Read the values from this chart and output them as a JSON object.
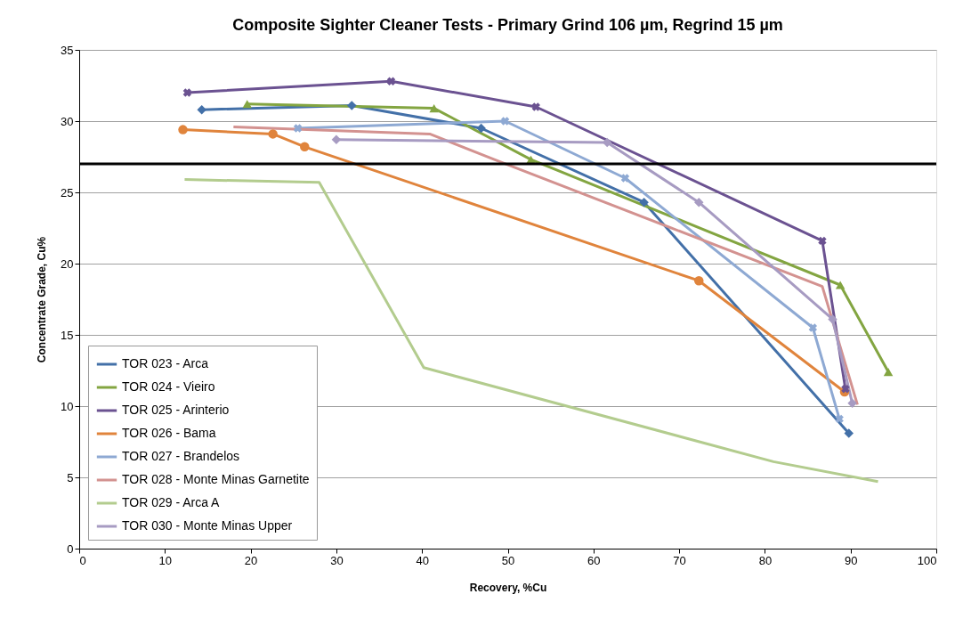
{
  "chart_data": {
    "type": "line",
    "title": "Composite Sighter Cleaner  Tests - Primary Grind 106 µm, Regrind 15 µm",
    "xlabel": "Recovery, %Cu",
    "ylabel": "Concentrate Grade, Cu%",
    "xlim": [
      0,
      100
    ],
    "xticks": [
      0,
      10,
      20,
      30,
      40,
      50,
      60,
      70,
      80,
      90,
      100
    ],
    "ylim": [
      0,
      35
    ],
    "yticks": [
      0,
      5,
      10,
      15,
      20,
      25,
      30,
      35
    ],
    "grid": "y",
    "legend": "bottom left",
    "line_style": "solid",
    "ref_lines": [
      {
        "axis": "y",
        "value": 27,
        "color": "#000000"
      }
    ],
    "series": [
      {
        "name": "TOR 023 - Arca",
        "color": "#4370a8",
        "marker": "diamond",
        "x": [
          14.3,
          31.8,
          46.9,
          65.9,
          89.8
        ],
        "values": [
          30.8,
          31.1,
          29.5,
          24.3,
          8.1
        ]
      },
      {
        "name": "TOR 024 - Vieiro",
        "color": "#83a541",
        "marker": "triangle",
        "x": [
          19.6,
          41.4,
          52.7,
          88.8,
          94.4
        ],
        "values": [
          31.2,
          30.9,
          27.3,
          18.5,
          12.4
        ]
      },
      {
        "name": "TOR 025 - Arinterio",
        "color": "#6b5291",
        "marker": "cross",
        "x": [
          12.6,
          36.4,
          53.3,
          86.7,
          89.4
        ],
        "values": [
          32.0,
          32.8,
          31.0,
          21.6,
          11.2
        ]
      },
      {
        "name": "TOR 026 - Bama",
        "color": "#e0843c",
        "marker": "circle",
        "x": [
          12.1,
          22.6,
          26.3,
          72.3,
          89.3
        ],
        "values": [
          29.4,
          29.1,
          28.2,
          18.8,
          11.0
        ]
      },
      {
        "name": "TOR 027 - Brandelos",
        "color": "#8ea9d3",
        "marker": "cross",
        "x": [
          25.5,
          49.7,
          63.7,
          85.6,
          88.7
        ],
        "values": [
          29.5,
          30.0,
          26.0,
          15.5,
          9.1
        ]
      },
      {
        "name": "TOR 028 - Monte Minas Garnetite",
        "color": "#d39290",
        "marker": "none",
        "x": [
          18.0,
          40.9,
          48.9,
          86.7,
          90.8
        ],
        "values": [
          29.6,
          29.1,
          27.2,
          18.4,
          10.1
        ]
      },
      {
        "name": "TOR 029 - Arca A",
        "color": "#b3cc8e",
        "marker": "none",
        "x": [
          12.3,
          28.0,
          40.2,
          81.0,
          93.2
        ],
        "values": [
          25.9,
          25.7,
          12.7,
          6.1,
          4.7
        ]
      },
      {
        "name": "TOR 030 - Monte Minas Upper",
        "color": "#a79bc2",
        "marker": "diamond",
        "x": [
          30.0,
          61.6,
          72.3,
          87.9,
          90.2
        ],
        "values": [
          28.7,
          28.5,
          24.3,
          16.1,
          10.2
        ]
      }
    ]
  }
}
